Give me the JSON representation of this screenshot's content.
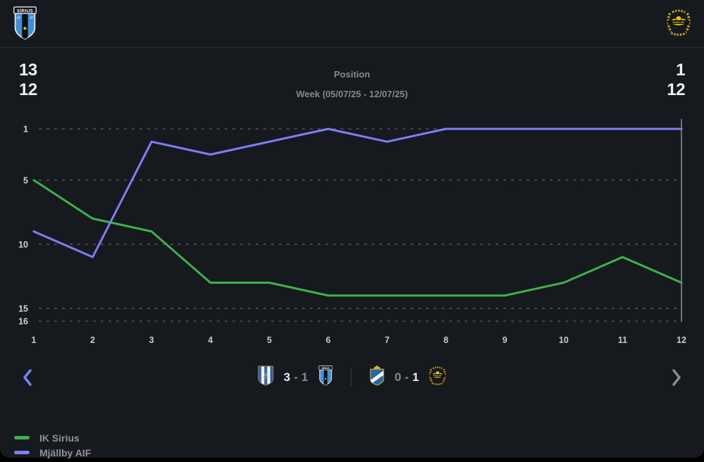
{
  "header": {
    "left_team": "IK Sirius",
    "left_position": "13",
    "left_week": "12",
    "title": "Position",
    "subtitle": "Week (05/07/25 - 12/07/25)",
    "right_team": "Mjällby AIF",
    "right_position": "1",
    "right_week": "12"
  },
  "chart_data": {
    "type": "line",
    "title": "Position",
    "xlabel": "Week",
    "ylabel": "Position",
    "x": [
      1,
      2,
      3,
      4,
      5,
      6,
      7,
      8,
      9,
      10,
      11,
      12
    ],
    "y_gridlines": [
      1,
      5,
      10,
      15,
      16
    ],
    "ylim": [
      1,
      16
    ],
    "y_inverted": true,
    "grid": "dashed-horizontal",
    "current_week_marker": 12,
    "legend_position": "bottom-left",
    "series": [
      {
        "name": "IK Sirius",
        "color": "#3eb14d",
        "values": [
          5,
          8,
          9,
          13,
          13,
          14,
          14,
          14,
          14,
          13,
          11,
          13
        ]
      },
      {
        "name": "Mjällby AIF",
        "color": "#7d80f2",
        "values": [
          9,
          11,
          2,
          3,
          2,
          1,
          2,
          1,
          1,
          1,
          1,
          1
        ]
      }
    ]
  },
  "results": {
    "matches": [
      {
        "home": "IFK Göteborg",
        "home_score": "3",
        "separator": "-",
        "away_score": "1",
        "away": "IK Sirius",
        "highlight": "home"
      },
      {
        "home": "Östers IF",
        "home_score": "0",
        "separator": "-",
        "away_score": "1",
        "away": "Mjällby AIF",
        "highlight": "away"
      }
    ]
  },
  "legend": {
    "items": [
      {
        "label": "IK Sirius",
        "color": "#3eb14d"
      },
      {
        "label": "Mjällby AIF",
        "color": "#7d80f2"
      }
    ]
  },
  "colors": {
    "background": "#16191d",
    "grid": "#595e64",
    "axis_label": "#c7cace",
    "current_week_line": "#6e737a",
    "accent_green": "#3eb14d",
    "accent_purple": "#7d80f2"
  }
}
